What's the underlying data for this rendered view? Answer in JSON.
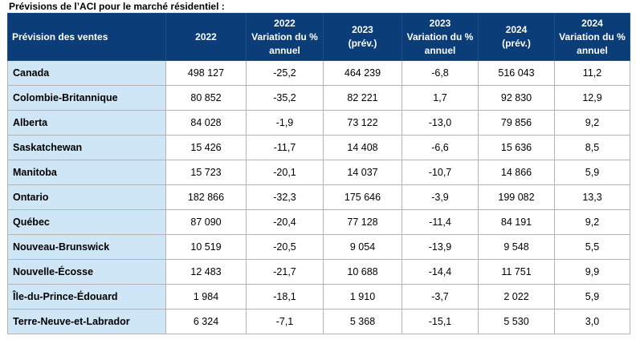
{
  "caption": "Prévisions de l’ACI pour le marché résidentiel :",
  "headers": [
    [
      "Prévision des ventes"
    ],
    [
      "2022"
    ],
    [
      "2022",
      "Variation du %",
      "annuel"
    ],
    [
      "2023",
      "(prév.)"
    ],
    [
      "2023",
      "Variation du %",
      "annuel"
    ],
    [
      "2024",
      "(prév.)"
    ],
    [
      "2024",
      "Variation du %",
      "annuel"
    ]
  ],
  "rows": [
    [
      "Canada",
      "498 127",
      "-25,2",
      "464 239",
      "-6,8",
      "516 043",
      "11,2"
    ],
    [
      "Colombie-Britannique",
      "80 852",
      "-35,2",
      "82 221",
      "1,7",
      "92 830",
      "12,9"
    ],
    [
      "Alberta",
      "84 028",
      "-1,9",
      "73 122",
      "-13,0",
      "79 856",
      "9,2"
    ],
    [
      "Saskatchewan",
      "15 426",
      "-11,7",
      "14 408",
      "-6,6",
      "15 636",
      "8,5"
    ],
    [
      "Manitoba",
      "15 723",
      "-20,1",
      "14 037",
      "-10,7",
      "14 866",
      "5,9"
    ],
    [
      "Ontario",
      "182 866",
      "-32,3",
      "175 646",
      "-3,9",
      "199 082",
      "13,3"
    ],
    [
      "Québec",
      "87 090",
      "-20,4",
      "77 128",
      "-11,4",
      "84 191",
      "9,2"
    ],
    [
      "Nouveau-Brunswick",
      "10 519",
      "-20,5",
      "9 054",
      "-13,9",
      "9 548",
      "5,5"
    ],
    [
      "Nouvelle-Écosse",
      "12 483",
      "-21,7",
      "10 688",
      "-14,4",
      "11 751",
      "9,9"
    ],
    [
      "Île-du-Prince-Édouard",
      "1 984",
      "-18,1",
      "1 910",
      "-3,7",
      "2 022",
      "5,9"
    ],
    [
      "Terre-Neuve-et-Labrador",
      "6 324",
      "-7,1",
      "5 368",
      "-15,1",
      "5 530",
      "3,0"
    ]
  ],
  "colors": {
    "header_bg": "#0b3d78",
    "province_bg": "#cfe6f7",
    "grid": "#b4b4b4"
  }
}
